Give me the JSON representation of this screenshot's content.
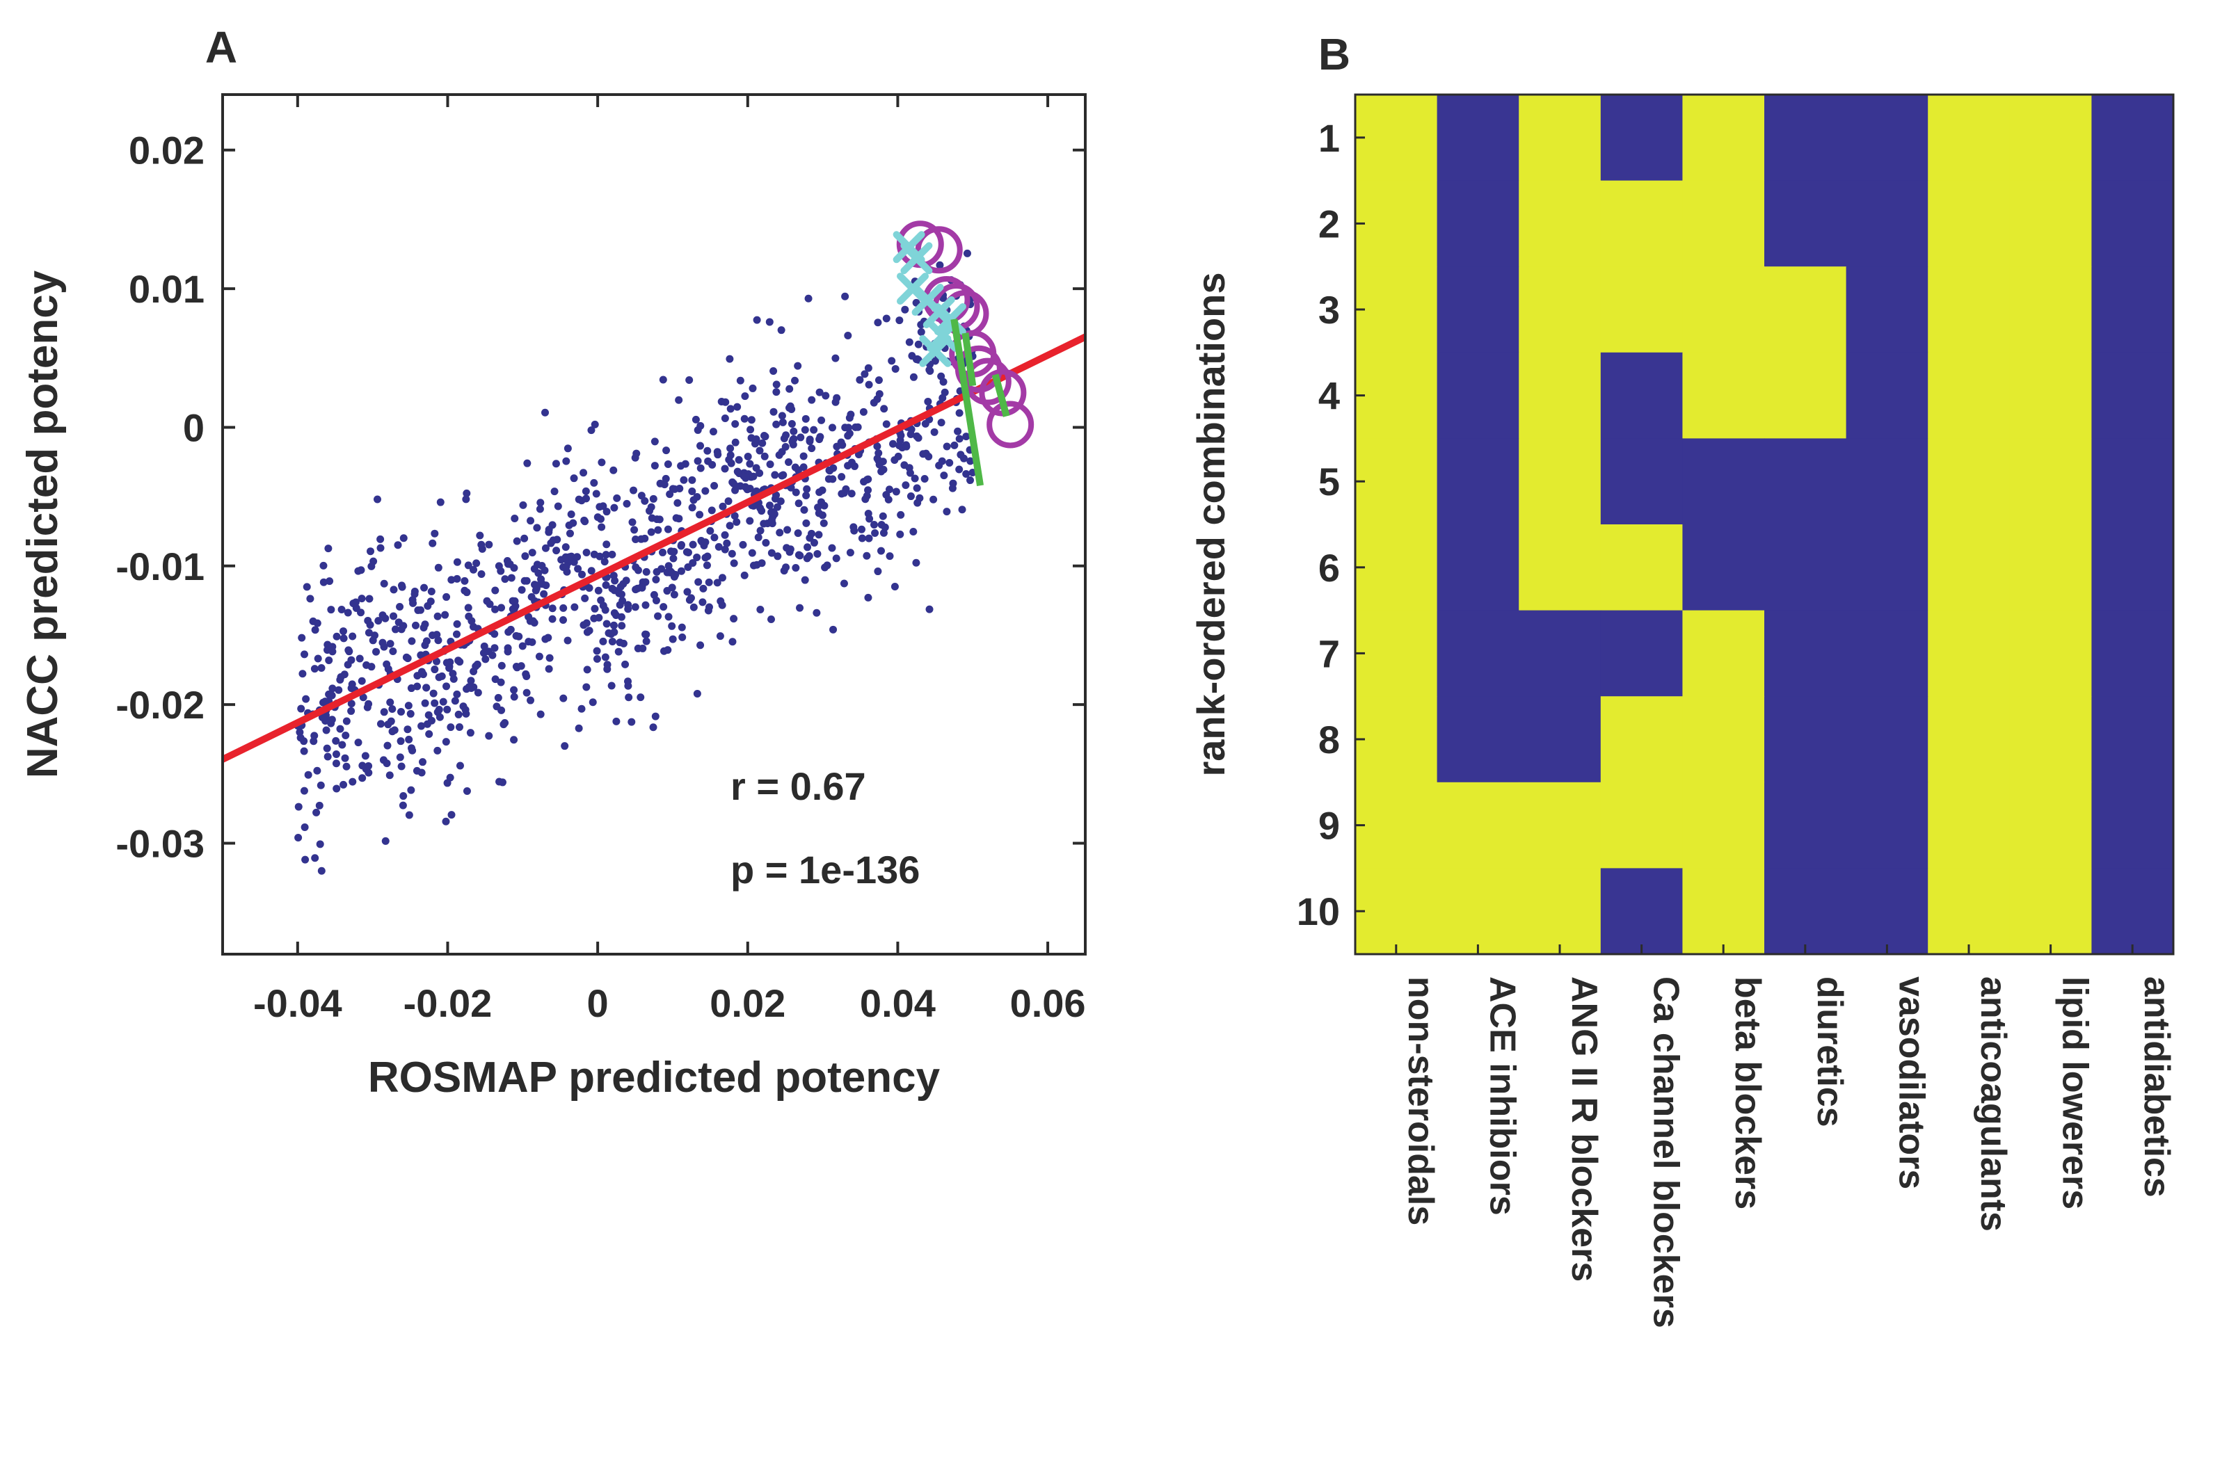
{
  "colors": {
    "dots": "#33338f",
    "fit_line": "#e8222c",
    "circle": "#a33aa6",
    "cross": "#7fd4d8",
    "green": "#4fb847",
    "heat_yes": "#e3eb2f",
    "heat_no": "#393592",
    "axis": "#2b2b2b"
  },
  "chart_data": [
    {
      "panel": "A",
      "type": "scatter",
      "xlabel": "ROSMAP predicted potency",
      "ylabel": "NACC predicted potency",
      "xlim": [
        -0.05,
        0.065
      ],
      "ylim": [
        -0.038,
        0.024
      ],
      "xticks": [
        -0.04,
        -0.02,
        0,
        0.02,
        0.04,
        0.06
      ],
      "xtick_labels": [
        "-0.04",
        "-0.02",
        "0",
        "0.02",
        "0.04",
        "0.06"
      ],
      "yticks": [
        -0.03,
        -0.02,
        -0.01,
        0,
        0.01,
        0.02
      ],
      "ytick_labels": [
        "-0.03",
        "-0.02",
        "-0.01",
        "0",
        "0.01",
        "0.02"
      ],
      "fit": {
        "slope": 0.265,
        "intercept": -0.0107
      },
      "annotations": [
        "r = 0.67",
        "p = 1e-136"
      ],
      "cloud": {
        "count": 1100,
        "x_range": [
          -0.04,
          0.05
        ],
        "y_sd": 0.0047,
        "seed": 7
      },
      "highlighted_circles": [
        {
          "x": 0.043,
          "y": 0.0132
        },
        {
          "x": 0.0455,
          "y": 0.0128
        },
        {
          "x": 0.0465,
          "y": 0.0092
        },
        {
          "x": 0.0478,
          "y": 0.0087
        },
        {
          "x": 0.049,
          "y": 0.0082
        },
        {
          "x": 0.05,
          "y": 0.0053
        },
        {
          "x": 0.0508,
          "y": 0.0042
        },
        {
          "x": 0.052,
          "y": 0.0033
        },
        {
          "x": 0.054,
          "y": 0.0025
        },
        {
          "x": 0.055,
          "y": 0.0002
        }
      ],
      "crosses": [
        {
          "x": 0.0415,
          "y": 0.013
        },
        {
          "x": 0.0425,
          "y": 0.0122
        },
        {
          "x": 0.042,
          "y": 0.01
        },
        {
          "x": 0.044,
          "y": 0.0092
        },
        {
          "x": 0.0455,
          "y": 0.0083
        },
        {
          "x": 0.047,
          "y": 0.0078
        },
        {
          "x": 0.046,
          "y": 0.0066
        },
        {
          "x": 0.045,
          "y": 0.0055
        }
      ],
      "green_segments": [
        {
          "x1": 0.0475,
          "y1": 0.0078,
          "x2": 0.051,
          "y2": -0.0042
        },
        {
          "x1": 0.049,
          "y1": 0.0068,
          "x2": 0.05,
          "y2": 0.003
        },
        {
          "x1": 0.053,
          "y1": 0.0038,
          "x2": 0.0545,
          "y2": 0.0008
        }
      ]
    },
    {
      "panel": "B",
      "type": "heatmap",
      "ylabel": "rank-ordered combinations",
      "rows": [
        "1",
        "2",
        "3",
        "4",
        "5",
        "6",
        "7",
        "8",
        "9",
        "10"
      ],
      "columns": [
        "non-steroidals",
        "ACE inhibiors",
        "ANG II R blockers",
        "Ca channel blockers",
        "beta blockers",
        "diuretics",
        "vasodilators",
        "anticoagulants",
        "lipid lowerers",
        "antidiabetics"
      ],
      "matrix": [
        [
          1,
          0,
          1,
          0,
          1,
          0,
          0,
          1,
          1,
          0
        ],
        [
          1,
          0,
          1,
          1,
          1,
          0,
          0,
          1,
          1,
          0
        ],
        [
          1,
          0,
          1,
          1,
          1,
          1,
          0,
          1,
          1,
          0
        ],
        [
          1,
          0,
          1,
          0,
          1,
          1,
          0,
          1,
          1,
          0
        ],
        [
          1,
          0,
          1,
          0,
          0,
          0,
          0,
          1,
          1,
          0
        ],
        [
          1,
          0,
          1,
          1,
          0,
          0,
          0,
          1,
          1,
          0
        ],
        [
          1,
          0,
          0,
          0,
          1,
          0,
          0,
          1,
          1,
          0
        ],
        [
          1,
          0,
          0,
          1,
          1,
          0,
          0,
          1,
          1,
          0
        ],
        [
          1,
          1,
          1,
          1,
          1,
          0,
          0,
          1,
          1,
          0
        ],
        [
          1,
          1,
          1,
          0,
          1,
          0,
          0,
          1,
          1,
          0
        ]
      ]
    }
  ],
  "panel_a_label": "A",
  "panel_b_label": "B",
  "annotation_r": "r = 0.67",
  "annotation_p": "p = 1e-136",
  "axis_a_xlabel": "ROSMAP predicted potency",
  "axis_a_ylabel": "NACC predicted potency",
  "axis_b_ylabel": "rank-ordered combinations"
}
